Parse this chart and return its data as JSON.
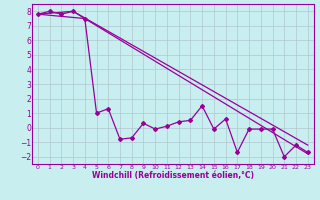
{
  "xlabel": "Windchill (Refroidissement éolien,°C)",
  "background_color": "#c8eef0",
  "grid_color": "#b0c8d0",
  "line_color": "#990099",
  "xlim": [
    -0.5,
    23.5
  ],
  "ylim": [
    -2.5,
    8.5
  ],
  "xticks": [
    0,
    1,
    2,
    3,
    4,
    5,
    6,
    7,
    8,
    9,
    10,
    11,
    12,
    13,
    14,
    15,
    16,
    17,
    18,
    19,
    20,
    21,
    22,
    23
  ],
  "yticks": [
    -2,
    -1,
    0,
    1,
    2,
    3,
    4,
    5,
    6,
    7,
    8
  ],
  "data_x": [
    0,
    1,
    2,
    3,
    4,
    5,
    6,
    7,
    8,
    9,
    10,
    11,
    12,
    13,
    14,
    15,
    16,
    17,
    18,
    19,
    20,
    21,
    22,
    23
  ],
  "data_y": [
    7.8,
    8.0,
    7.8,
    8.0,
    7.5,
    1.0,
    1.3,
    -0.8,
    -0.7,
    0.3,
    -0.1,
    0.1,
    0.4,
    0.5,
    1.5,
    -0.1,
    0.6,
    -1.7,
    -0.1,
    -0.1,
    -0.1,
    -2.0,
    -1.2,
    -1.7
  ],
  "upper_trend_x": [
    0,
    3,
    23
  ],
  "upper_trend_y": [
    7.8,
    8.0,
    -1.2
  ],
  "lower_trend_x": [
    0,
    4,
    23
  ],
  "lower_trend_y": [
    7.8,
    7.5,
    -1.8
  ]
}
